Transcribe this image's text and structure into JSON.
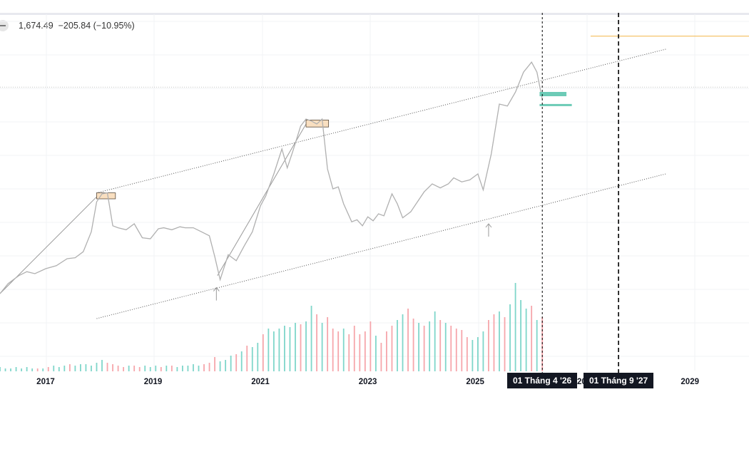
{
  "legend": {
    "value": "1,674.49",
    "change": "−205.84",
    "change_pct": "(−10.95%)"
  },
  "colors": {
    "price_line": "#b0b0b0",
    "volume_up": "#7fd6ca",
    "volume_down": "#f6a6ab",
    "channel": "#555555",
    "highlight_fill": "#f9dfc0",
    "highlight_stroke": "#5a4a3a",
    "forecast_bar": "#6ccbb6",
    "target_line": "#f3b545",
    "marker": "#000000"
  },
  "chart_data": {
    "type": "line",
    "x_axis": {
      "ticks": [
        "2017",
        "2019",
        "2021",
        "2023",
        "2025",
        "2029"
      ],
      "range": [
        2016.15,
        2030.1
      ]
    },
    "series": [
      {
        "values": [
          [
            2016.15,
            170
          ],
          [
            2016.3,
            180
          ],
          [
            2016.5,
            188
          ],
          [
            2016.65,
            192
          ],
          [
            2016.8,
            190
          ],
          [
            2017.0,
            195
          ],
          [
            2017.2,
            198
          ],
          [
            2017.4,
            205
          ],
          [
            2017.55,
            206
          ],
          [
            2017.7,
            212
          ],
          [
            2017.85,
            232
          ],
          [
            2017.95,
            262
          ],
          [
            2018.05,
            270
          ],
          [
            2018.15,
            271
          ],
          [
            2018.25,
            238
          ],
          [
            2018.35,
            236
          ],
          [
            2018.5,
            234
          ],
          [
            2018.65,
            240
          ],
          [
            2018.8,
            226
          ],
          [
            2018.95,
            225
          ],
          [
            2019.1,
            235
          ],
          [
            2019.2,
            236
          ],
          [
            2019.35,
            234
          ],
          [
            2019.5,
            237
          ],
          [
            2019.6,
            236
          ],
          [
            2019.75,
            236
          ],
          [
            2019.9,
            232
          ],
          [
            2020.05,
            228
          ],
          [
            2020.15,
            207
          ],
          [
            2020.25,
            184
          ],
          [
            2020.4,
            209
          ],
          [
            2020.55,
            203
          ],
          [
            2020.7,
            218
          ],
          [
            2020.85,
            232
          ],
          [
            2021.0,
            258
          ],
          [
            2021.1,
            268
          ],
          [
            2021.25,
            290
          ],
          [
            2021.4,
            315
          ],
          [
            2021.5,
            296
          ],
          [
            2021.6,
            312
          ],
          [
            2021.75,
            338
          ],
          [
            2021.85,
            345
          ],
          [
            2021.95,
            343
          ],
          [
            2022.05,
            340
          ],
          [
            2022.15,
            345
          ],
          [
            2022.25,
            295
          ],
          [
            2022.35,
            275
          ],
          [
            2022.45,
            277
          ],
          [
            2022.55,
            260
          ],
          [
            2022.7,
            242
          ],
          [
            2022.8,
            244
          ],
          [
            2022.9,
            238
          ],
          [
            2023.0,
            247
          ],
          [
            2023.1,
            243
          ],
          [
            2023.2,
            250
          ],
          [
            2023.3,
            248
          ],
          [
            2023.45,
            270
          ],
          [
            2023.55,
            260
          ],
          [
            2023.65,
            246
          ],
          [
            2023.8,
            252
          ],
          [
            2023.9,
            260
          ],
          [
            2024.05,
            272
          ],
          [
            2024.2,
            280
          ],
          [
            2024.35,
            276
          ],
          [
            2024.5,
            280
          ],
          [
            2024.6,
            286
          ],
          [
            2024.75,
            282
          ],
          [
            2024.9,
            284
          ],
          [
            2025.05,
            290
          ],
          [
            2025.15,
            274
          ],
          [
            2025.3,
            310
          ],
          [
            2025.45,
            360
          ],
          [
            2025.6,
            358
          ],
          [
            2025.75,
            372
          ],
          [
            2025.9,
            392
          ],
          [
            2026.05,
            402
          ],
          [
            2026.15,
            392
          ],
          [
            2026.25,
            365
          ]
        ]
      }
    ],
    "volume": {
      "values": [
        [
          2016.15,
          3,
          "up"
        ],
        [
          2016.25,
          2,
          "up"
        ],
        [
          2016.35,
          2,
          "up"
        ],
        [
          2016.45,
          3,
          "up"
        ],
        [
          2016.55,
          2,
          "up"
        ],
        [
          2016.65,
          3,
          "up"
        ],
        [
          2016.75,
          2,
          "up"
        ],
        [
          2016.85,
          2,
          "down"
        ],
        [
          2016.95,
          2,
          "up"
        ],
        [
          2017.05,
          3,
          "down"
        ],
        [
          2017.15,
          4,
          "up"
        ],
        [
          2017.25,
          3,
          "up"
        ],
        [
          2017.35,
          4,
          "up"
        ],
        [
          2017.45,
          5,
          "down"
        ],
        [
          2017.55,
          4,
          "up"
        ],
        [
          2017.65,
          5,
          "up"
        ],
        [
          2017.75,
          5,
          "up"
        ],
        [
          2017.85,
          4,
          "up"
        ],
        [
          2017.95,
          6,
          "up"
        ],
        [
          2018.05,
          8,
          "up"
        ],
        [
          2018.15,
          6,
          "down"
        ],
        [
          2018.25,
          5,
          "down"
        ],
        [
          2018.35,
          4,
          "down"
        ],
        [
          2018.45,
          3,
          "down"
        ],
        [
          2018.55,
          4,
          "up"
        ],
        [
          2018.65,
          4,
          "down"
        ],
        [
          2018.75,
          3,
          "down"
        ],
        [
          2018.85,
          4,
          "up"
        ],
        [
          2018.95,
          3,
          "up"
        ],
        [
          2019.05,
          4,
          "up"
        ],
        [
          2019.15,
          3,
          "down"
        ],
        [
          2019.25,
          4,
          "up"
        ],
        [
          2019.35,
          4,
          "down"
        ],
        [
          2019.45,
          3,
          "up"
        ],
        [
          2019.55,
          4,
          "up"
        ],
        [
          2019.65,
          4,
          "up"
        ],
        [
          2019.75,
          5,
          "up"
        ],
        [
          2019.85,
          4,
          "up"
        ],
        [
          2019.95,
          5,
          "down"
        ],
        [
          2020.05,
          6,
          "down"
        ],
        [
          2020.15,
          10,
          "down"
        ],
        [
          2020.25,
          7,
          "up"
        ],
        [
          2020.35,
          8,
          "up"
        ],
        [
          2020.45,
          11,
          "up"
        ],
        [
          2020.55,
          12,
          "down"
        ],
        [
          2020.65,
          14,
          "up"
        ],
        [
          2020.75,
          18,
          "down"
        ],
        [
          2020.85,
          17,
          "up"
        ],
        [
          2020.95,
          20,
          "up"
        ],
        [
          2021.05,
          26,
          "down"
        ],
        [
          2021.15,
          30,
          "up"
        ],
        [
          2021.25,
          28,
          "up"
        ],
        [
          2021.35,
          30,
          "up"
        ],
        [
          2021.45,
          32,
          "up"
        ],
        [
          2021.55,
          31,
          "up"
        ],
        [
          2021.65,
          34,
          "up"
        ],
        [
          2021.75,
          33,
          "down"
        ],
        [
          2021.85,
          35,
          "up"
        ],
        [
          2021.95,
          46,
          "up"
        ],
        [
          2022.05,
          40,
          "down"
        ],
        [
          2022.15,
          34,
          "up"
        ],
        [
          2022.25,
          38,
          "down"
        ],
        [
          2022.35,
          30,
          "down"
        ],
        [
          2022.45,
          28,
          "down"
        ],
        [
          2022.55,
          30,
          "up"
        ],
        [
          2022.65,
          26,
          "down"
        ],
        [
          2022.75,
          32,
          "down"
        ],
        [
          2022.85,
          26,
          "down"
        ],
        [
          2022.95,
          28,
          "down"
        ],
        [
          2023.05,
          35,
          "down"
        ],
        [
          2023.15,
          25,
          "up"
        ],
        [
          2023.25,
          20,
          "down"
        ],
        [
          2023.35,
          28,
          "down"
        ],
        [
          2023.45,
          32,
          "down"
        ],
        [
          2023.55,
          36,
          "up"
        ],
        [
          2023.65,
          40,
          "up"
        ],
        [
          2023.75,
          44,
          "down"
        ],
        [
          2023.85,
          37,
          "down"
        ],
        [
          2023.95,
          34,
          "up"
        ],
        [
          2024.05,
          32,
          "down"
        ],
        [
          2024.15,
          35,
          "up"
        ],
        [
          2024.25,
          42,
          "up"
        ],
        [
          2024.35,
          36,
          "down"
        ],
        [
          2024.45,
          34,
          "up"
        ],
        [
          2024.55,
          32,
          "down"
        ],
        [
          2024.65,
          30,
          "down"
        ],
        [
          2024.75,
          29,
          "down"
        ],
        [
          2024.85,
          24,
          "down"
        ],
        [
          2024.95,
          22,
          "up"
        ],
        [
          2025.05,
          24,
          "up"
        ],
        [
          2025.15,
          28,
          "up"
        ],
        [
          2025.25,
          36,
          "down"
        ],
        [
          2025.35,
          40,
          "down"
        ],
        [
          2025.45,
          42,
          "up"
        ],
        [
          2025.55,
          38,
          "down"
        ],
        [
          2025.65,
          47,
          "up"
        ],
        [
          2025.75,
          62,
          "up"
        ],
        [
          2025.85,
          50,
          "up"
        ],
        [
          2025.95,
          44,
          "up"
        ],
        [
          2026.05,
          46,
          "down"
        ],
        [
          2026.15,
          36,
          "up"
        ],
        [
          2026.25,
          38,
          "down"
        ]
      ]
    },
    "channel_upper": [
      [
        2017.95,
        271
      ],
      [
        2028.55,
        415
      ]
    ],
    "channel_lower": [
      [
        2017.95,
        145
      ],
      [
        2028.55,
        290
      ]
    ],
    "trend_lines": [
      [
        [
          2016.15,
          170
        ],
        [
          2017.95,
          267
        ]
      ],
      [
        [
          2020.2,
          188
        ],
        [
          2021.85,
          340
        ]
      ]
    ],
    "highlight_boxes": [
      [
        2017.95,
        2018.3,
        265,
        271
      ],
      [
        2021.85,
        2022.27,
        337,
        344
      ]
    ],
    "arrows": [
      [
        2020.18,
        176
      ],
      [
        2025.25,
        240
      ]
    ],
    "horizontal_levels": [
      {
        "y": 377,
        "style": "dotted",
        "from": 2016.15,
        "to": 2030.1
      },
      {
        "y": 428,
        "style": "solid",
        "color": "target_line",
        "from": 2027.15,
        "to": 2030.1
      }
    ],
    "forecast_bars": [
      {
        "from": 2026.2,
        "to": 2026.7,
        "y": 370,
        "thickness": 6
      },
      {
        "from": 2026.2,
        "to": 2026.8,
        "y": 359,
        "thickness": 3
      }
    ],
    "vertical_markers": [
      {
        "x": 2026.25,
        "label": "01 Tháng 4 '26",
        "dash": "fine"
      },
      {
        "x": 2027.67,
        "label": "01 Tháng 9 '27",
        "dash": "bold"
      }
    ],
    "partial_tick": "202",
    "y_range": [
      100,
      450
    ],
    "grid": true
  }
}
